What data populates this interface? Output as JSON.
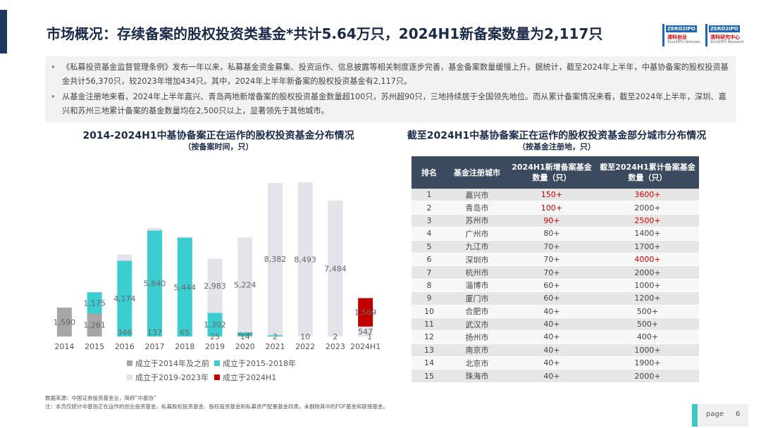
{
  "header": {
    "title": "市场概况：存续备案的股权投资类基金*共计5.64万只，2024H1新备案数量为2,117只",
    "logo_left": {
      "badge": "ZERO2IPO",
      "cn": "清科创业",
      "en": "Zero2IPO Ventures"
    },
    "logo_right": {
      "badge": "ZERO2IPO",
      "cn": "清科研究中心",
      "en": "Zero2IPO Research"
    }
  },
  "summary": {
    "bullets": [
      "《私募投资基金监督管理条例》发布一年以来，私募基金资金募集、投资运作、信息披露等相关制度逐步完善，基金备案数量缓慢上升。据统计，截至2024年上半年，中基协备案的股权投资基金共计56,370只，较2023年增加434只。其中，2024年上半年新备案的股权投资基金有2,117只。",
      "从基金注册地来看，2024年上半年嘉兴、青岛两地新增备案的股权投资基金数量超100只，苏州超90只，三地持续居于全国领先地位。而从累计备案情况来看，截至2024年上半年，深圳、嘉兴和苏州三地累计备案的基金数量均在2,500只以上，显著领先于其他城市。"
    ]
  },
  "chart_data": {
    "type": "bar",
    "title": "2014-2024H1中基协备案正在运作的股权投资基金分布情况",
    "subtitle": "（按备案时间，只）",
    "categories": [
      "2014",
      "2015",
      "2016",
      "2017",
      "2018",
      "2019",
      "2020",
      "2021",
      "2022",
      "2023",
      "2024H1"
    ],
    "series": [
      {
        "name": "成立于2014年及之前",
        "color": "#a6a6a6",
        "values": [
          1590,
          1261,
          null,
          null,
          null,
          null,
          null,
          null,
          null,
          null,
          null
        ],
        "labels": [
          "1,590",
          "1,261",
          "",
          "",
          "",
          "",
          "",
          "",
          "",
          "",
          ""
        ]
      },
      {
        "name": "成立于2015-2018年",
        "color": "#3ccdd0",
        "values": [
          null,
          1175,
          4174,
          5840,
          5444,
          1302,
          230,
          70,
          null,
          null,
          null
        ],
        "labels": [
          "",
          "1,175",
          "4,174",
          "5,840",
          "5,444",
          "1,302",
          "230",
          "70",
          "",
          "",
          ""
        ]
      },
      {
        "name": "成立于2019-2023年",
        "color": "#e3e4ea",
        "values": [
          null,
          null,
          346,
          137,
          65,
          2983,
          5224,
          8382,
          8493,
          7484,
          547
        ],
        "labels": [
          "",
          "",
          "346",
          "137",
          "65",
          "2,983",
          "5,224",
          "8,382",
          "8,493",
          "7,484",
          "547"
        ]
      },
      {
        "name": "成立于2024H1",
        "color": "#c00000",
        "values": [
          null,
          null,
          null,
          null,
          null,
          null,
          null,
          null,
          null,
          null,
          1569
        ],
        "labels": [
          "",
          "",
          "",
          "",
          "",
          "",
          "",
          "",
          "",
          "",
          "1,569"
        ]
      }
    ],
    "extra_labels": [
      {
        "category": "2019",
        "text": "25"
      },
      {
        "category": "2020",
        "text": "14"
      },
      {
        "category": "2021",
        "text": "2"
      },
      {
        "category": "2022",
        "text": "10"
      },
      {
        "category": "2023",
        "text": "2"
      },
      {
        "category": "2024H1",
        "text": "1"
      }
    ],
    "ylim": [
      0,
      9000
    ],
    "legend_position": "bottom"
  },
  "table": {
    "title": "截至2024H1中基协备案正在运作的股权投资基金部分城市分布情况",
    "subtitle": "（按基金注册地，只）",
    "headers": [
      "排名",
      "基金注册城市",
      "2024H1新增备案基金数量（只）",
      "截至2024H1累计备案基金数量（只）"
    ],
    "rows": [
      {
        "rank": "1",
        "city": "嘉兴市",
        "new": "150+",
        "total": "3600+",
        "new_red": true,
        "total_red": true
      },
      {
        "rank": "2",
        "city": "青岛市",
        "new": "100+",
        "total": "2000+",
        "new_red": true,
        "total_red": false
      },
      {
        "rank": "3",
        "city": "苏州市",
        "new": "90+",
        "total": "2500+",
        "new_red": true,
        "total_red": true
      },
      {
        "rank": "4",
        "city": "广州市",
        "new": "80+",
        "total": "1400+",
        "new_red": false,
        "total_red": false
      },
      {
        "rank": "5",
        "city": "九江市",
        "new": "70+",
        "total": "1700+",
        "new_red": false,
        "total_red": false
      },
      {
        "rank": "6",
        "city": "深圳市",
        "new": "70+",
        "total": "4000+",
        "new_red": false,
        "total_red": true
      },
      {
        "rank": "7",
        "city": "杭州市",
        "new": "70+",
        "total": "2000+",
        "new_red": false,
        "total_red": false
      },
      {
        "rank": "8",
        "city": "淄博市",
        "new": "60+",
        "total": "1000+",
        "new_red": false,
        "total_red": false
      },
      {
        "rank": "9",
        "city": "厦门市",
        "new": "60+",
        "total": "1200+",
        "new_red": false,
        "total_red": false
      },
      {
        "rank": "10",
        "city": "合肥市",
        "new": "40+",
        "total": "500+",
        "new_red": false,
        "total_red": false
      },
      {
        "rank": "11",
        "city": "武汉市",
        "new": "40+",
        "total": "500+",
        "new_red": false,
        "total_red": false
      },
      {
        "rank": "12",
        "city": "扬州市",
        "new": "40+",
        "total": "400+",
        "new_red": false,
        "total_red": false
      },
      {
        "rank": "13",
        "city": "南京市",
        "new": "40+",
        "total": "1000+",
        "new_red": false,
        "total_red": false
      },
      {
        "rank": "14",
        "city": "北京市",
        "new": "40+",
        "total": "1900+",
        "new_red": false,
        "total_red": false
      },
      {
        "rank": "15",
        "city": "珠海市",
        "new": "40+",
        "total": "2000+",
        "new_red": false,
        "total_red": false
      }
    ]
  },
  "footer": {
    "source": "数据来源：中国证券投资基金业，简称“中基协”",
    "note": "注：本页仅统计中基协正在运作的创业投资基金、私募股权投资基金、股权投资基金和私募资产配置基金四类，未剔除其中的FOF基金和联接基金。",
    "page_label": "page",
    "page_number": "6"
  }
}
